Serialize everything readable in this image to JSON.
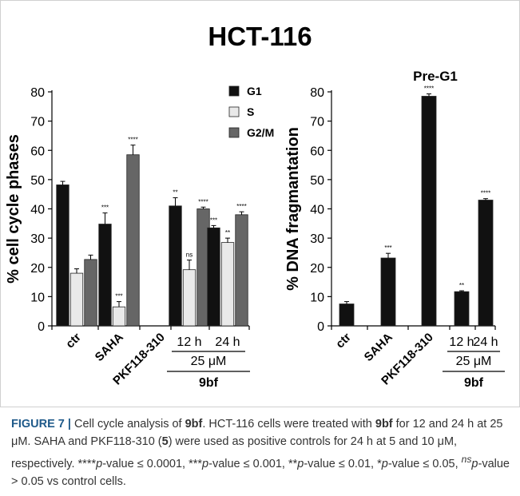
{
  "title": "HCT-116",
  "chart_data": [
    {
      "type": "bar",
      "title": "",
      "ylabel": "% cell cycle phases",
      "ylim": [
        0,
        80
      ],
      "yticks": [
        0,
        10,
        20,
        30,
        40,
        50,
        60,
        70,
        80
      ],
      "categories": [
        "ctr",
        "SAHA",
        "PKF118-310",
        "12 h",
        "24 h"
      ],
      "group_labels": {
        "concentration": "25 μM",
        "compound": "9bf"
      },
      "legend_position": "top-right",
      "series": [
        {
          "name": "G1",
          "color": "#111111",
          "values": [
            48.2,
            34.8,
            0,
            41.0,
            33.5
          ],
          "errors": [
            1.2,
            3.8,
            0,
            2.8,
            0.8
          ],
          "sig": [
            "",
            "***",
            "",
            "**",
            "***"
          ]
        },
        {
          "name": "S",
          "color": "#e9e9e9",
          "values": [
            18.0,
            6.5,
            0,
            19.2,
            28.5
          ],
          "errors": [
            1.5,
            1.8,
            0,
            3.3,
            1.5
          ],
          "sig": [
            "",
            "***",
            "",
            "ns",
            "**"
          ]
        },
        {
          "name": "G2/M",
          "color": "#666666",
          "values": [
            22.7,
            58.5,
            0,
            40.0,
            38.0
          ],
          "errors": [
            1.5,
            3.3,
            0,
            0.6,
            1.0
          ],
          "sig": [
            "",
            "****",
            "",
            "****",
            "****"
          ]
        }
      ]
    },
    {
      "type": "bar",
      "title": "Pre-G1",
      "ylabel": "% DNA fragmantation",
      "ylim": [
        0,
        80
      ],
      "yticks": [
        0,
        10,
        20,
        30,
        40,
        50,
        60,
        70,
        80
      ],
      "categories": [
        "ctr",
        "SAHA",
        "PKF118-310",
        "12 h",
        "24 h"
      ],
      "group_labels": {
        "concentration": "25 μM",
        "compound": "9bf"
      },
      "series": [
        {
          "name": "Pre-G1",
          "color": "#111111",
          "values": [
            7.5,
            23.2,
            78.5,
            11.7,
            43.0
          ],
          "errors": [
            0.8,
            1.6,
            0.8,
            0.3,
            0.5
          ],
          "sig": [
            "",
            "***",
            "****",
            "**",
            "****"
          ]
        }
      ]
    }
  ],
  "caption": {
    "label": "FIGURE 7 |",
    "segments": [
      {
        "text": " Cell cycle analysis of ",
        "b": false,
        "i": false
      },
      {
        "text": "9bf",
        "b": true,
        "i": false
      },
      {
        "text": ". HCT-116 cells were treated with ",
        "b": false,
        "i": false
      },
      {
        "text": "9bf",
        "b": true,
        "i": false
      },
      {
        "text": " for 12 and 24 h at 25 μM. SAHA and PKF118-310 (",
        "b": false,
        "i": false
      },
      {
        "text": "5",
        "b": true,
        "i": false
      },
      {
        "text": ") were used as positive controls for 24 h at 5 and 10 μM, respectively. ****",
        "b": false,
        "i": false
      },
      {
        "text": "p",
        "b": false,
        "i": true
      },
      {
        "text": "-value ≤ 0.0001, ***",
        "b": false,
        "i": false
      },
      {
        "text": "p",
        "b": false,
        "i": true
      },
      {
        "text": "-value ≤ 0.001, **",
        "b": false,
        "i": false
      },
      {
        "text": "p",
        "b": false,
        "i": true
      },
      {
        "text": "-value ≤ 0.01, *",
        "b": false,
        "i": false
      },
      {
        "text": "p",
        "b": false,
        "i": true
      },
      {
        "text": "-value ≤ 0.05, ",
        "b": false,
        "i": false
      },
      {
        "text": "ns",
        "b": false,
        "i": true,
        "sup": true
      },
      {
        "text": "p",
        "b": false,
        "i": true
      },
      {
        "text": "-value > 0.05 vs control cells.",
        "b": false,
        "i": false
      }
    ]
  }
}
